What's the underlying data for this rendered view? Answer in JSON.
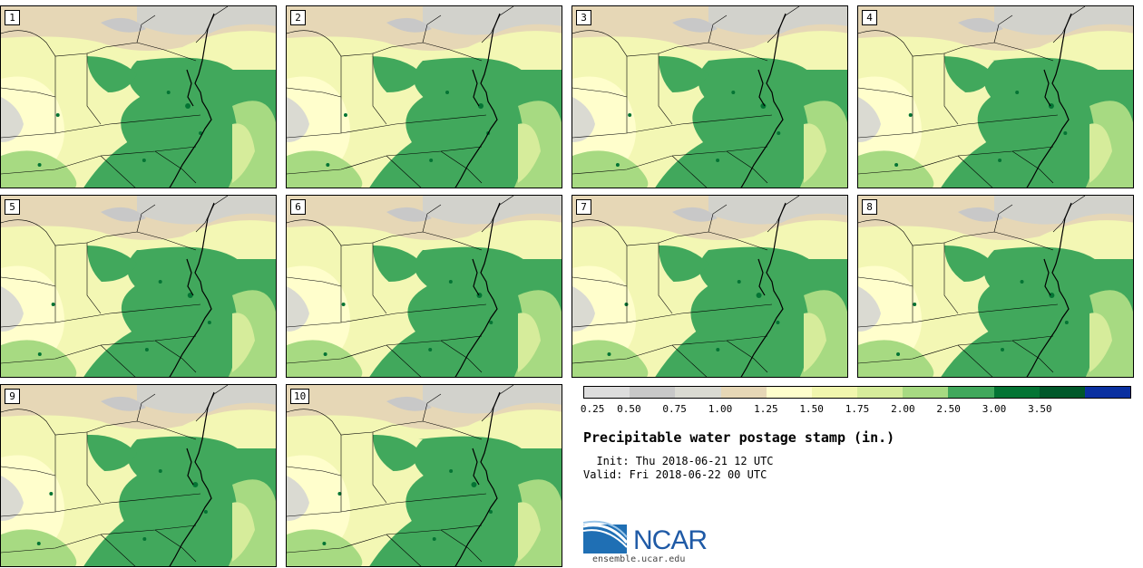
{
  "stamps": [
    "1",
    "2",
    "3",
    "4",
    "5",
    "6",
    "7",
    "8",
    "9",
    "10"
  ],
  "legend": {
    "colors": [
      "#dddddd",
      "#c8c8c8",
      "#dadad2",
      "#e6d7b6",
      "#fffecc",
      "#f1f6ae",
      "#d6ec9b",
      "#a7da82",
      "#41a85c",
      "#047434",
      "#00582a",
      "#0a30a0"
    ],
    "ticks": [
      "0.25",
      "0.50",
      "0.75",
      "1.00",
      "1.25",
      "1.50",
      "1.75",
      "2.00",
      "2.50",
      "3.00",
      "3.50"
    ]
  },
  "title": "Precipitable water postage stamp (in.)",
  "init": "  Init: Thu 2018-06-21 12 UTC",
  "valid": "Valid: Fri 2018-06-22 00 UTC",
  "logo": {
    "text": "NCAR",
    "url": "ensemble.ucar.edu"
  }
}
